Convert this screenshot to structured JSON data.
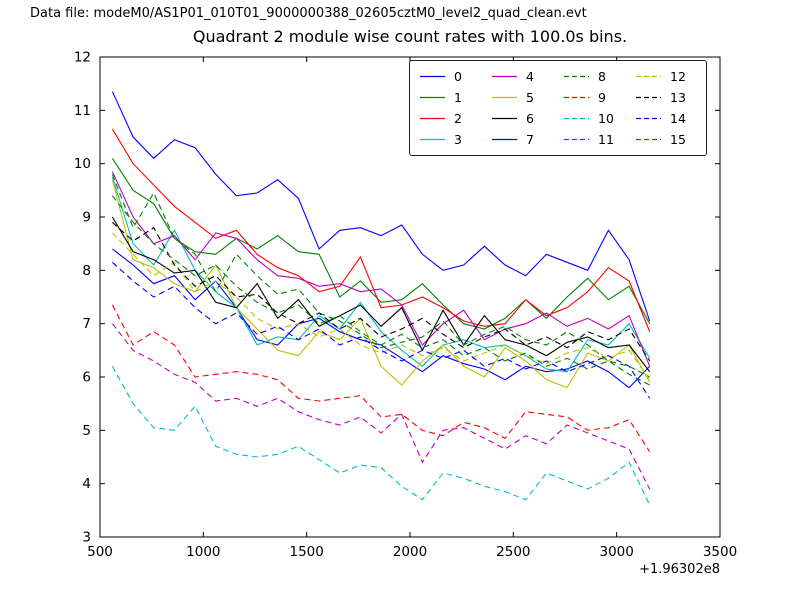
{
  "header": {
    "data_file_label": "Data file: modeM0/AS1P01_010T01_9000000388_02605cztM0_level2_quad_clean.evt"
  },
  "chart_data": {
    "type": "line",
    "title": "Quadrant 2 module wise count rates with 100.0s bins.",
    "xlabel": "",
    "ylabel": "",
    "x_offset_label": "+1.96302e8",
    "xlim": [
      500,
      3500
    ],
    "ylim": [
      3,
      12
    ],
    "xticks": [
      500,
      1000,
      1500,
      2000,
      2500,
      3000,
      3500
    ],
    "yticks": [
      3,
      4,
      5,
      6,
      7,
      8,
      9,
      10,
      11,
      12
    ],
    "grid": false,
    "legend_position": "upper right",
    "x": [
      560,
      660,
      760,
      860,
      960,
      1060,
      1160,
      1260,
      1360,
      1460,
      1560,
      1660,
      1760,
      1860,
      1960,
      2060,
      2160,
      2260,
      2360,
      2460,
      2560,
      2660,
      2760,
      2860,
      2960,
      3060,
      3160
    ],
    "series": [
      {
        "name": "0",
        "color": "#0000ff",
        "dash": false,
        "values": [
          8.4,
          8.1,
          7.75,
          7.9,
          7.45,
          7.8,
          7.3,
          6.7,
          6.6,
          7.0,
          7.1,
          6.85,
          6.7,
          6.6,
          6.35,
          6.1,
          6.4,
          6.25,
          6.15,
          5.95,
          6.2,
          6.1,
          6.15,
          6.3,
          6.1,
          5.8,
          6.2
        ]
      },
      {
        "name": "1",
        "color": "#008000",
        "dash": false,
        "values": [
          10.1,
          9.5,
          9.25,
          8.6,
          8.35,
          8.3,
          8.6,
          8.4,
          8.65,
          8.35,
          8.3,
          7.5,
          7.8,
          7.4,
          7.45,
          7.75,
          7.35,
          7.0,
          6.9,
          7.1,
          7.45,
          7.1,
          7.5,
          7.85,
          7.45,
          7.7,
          7.0
        ]
      },
      {
        "name": "2",
        "color": "#ff0000",
        "dash": false,
        "values": [
          10.65,
          10.0,
          9.6,
          9.2,
          8.9,
          8.6,
          8.75,
          8.3,
          8.05,
          7.9,
          7.6,
          7.7,
          8.25,
          7.3,
          7.35,
          7.5,
          7.3,
          7.05,
          6.95,
          7.0,
          7.45,
          7.15,
          7.3,
          7.6,
          8.05,
          7.8,
          6.85
        ]
      },
      {
        "name": "3",
        "color": "#00bfbf",
        "dash": false,
        "values": [
          9.75,
          8.5,
          8.1,
          8.75,
          8.0,
          7.6,
          7.3,
          6.6,
          6.75,
          6.7,
          7.15,
          6.9,
          7.4,
          6.85,
          6.5,
          6.2,
          6.6,
          6.7,
          6.55,
          6.6,
          6.4,
          6.15,
          6.1,
          6.7,
          6.6,
          7.0,
          6.35
        ]
      },
      {
        "name": "4",
        "color": "#bf00bf",
        "dash": false,
        "values": [
          9.85,
          9.0,
          8.5,
          8.65,
          8.2,
          8.7,
          8.6,
          8.2,
          7.9,
          7.85,
          7.7,
          7.75,
          7.6,
          7.65,
          7.35,
          6.6,
          7.0,
          7.25,
          6.7,
          6.9,
          7.0,
          7.2,
          6.95,
          7.1,
          6.9,
          7.15,
          6.2
        ]
      },
      {
        "name": "5",
        "color": "#bfbf00",
        "dash": false,
        "values": [
          9.7,
          8.2,
          8.05,
          7.75,
          7.6,
          8.1,
          7.3,
          6.9,
          6.5,
          6.4,
          6.85,
          6.7,
          7.1,
          6.2,
          5.85,
          6.3,
          6.6,
          6.2,
          6.0,
          6.55,
          6.3,
          5.95,
          5.8,
          6.45,
          6.3,
          6.6,
          5.9
        ]
      },
      {
        "name": "6",
        "color": "#000000",
        "dash": false,
        "values": [
          9.0,
          8.35,
          8.2,
          7.95,
          8.0,
          7.4,
          7.3,
          7.75,
          7.1,
          7.45,
          6.95,
          7.15,
          7.35,
          6.95,
          7.3,
          6.5,
          7.25,
          6.6,
          7.15,
          6.7,
          6.6,
          6.4,
          6.65,
          6.75,
          6.55,
          6.6,
          6.1
        ]
      },
      {
        "name": "7",
        "color": "#0000ff",
        "dash": false,
        "values": [
          11.35,
          10.5,
          10.1,
          10.45,
          10.3,
          9.8,
          9.4,
          9.45,
          9.7,
          9.35,
          8.4,
          8.75,
          8.8,
          8.65,
          8.85,
          8.3,
          8.0,
          8.1,
          8.45,
          8.1,
          7.9,
          8.3,
          8.15,
          8.0,
          8.75,
          8.2,
          7.05
        ]
      },
      {
        "name": "8",
        "color": "#008000",
        "dash": true,
        "values": [
          9.8,
          8.8,
          9.45,
          8.6,
          8.3,
          7.6,
          8.3,
          7.9,
          7.55,
          7.65,
          7.2,
          7.05,
          6.8,
          6.55,
          6.65,
          6.75,
          7.05,
          6.6,
          6.8,
          6.95,
          6.7,
          6.6,
          6.85,
          6.6,
          6.3,
          6.2,
          6.0
        ]
      },
      {
        "name": "9",
        "color": "#ff0000",
        "dash": true,
        "values": [
          7.35,
          6.6,
          6.85,
          6.6,
          6.0,
          6.05,
          6.1,
          6.05,
          5.95,
          5.6,
          5.55,
          5.6,
          5.65,
          5.25,
          5.3,
          5.0,
          4.9,
          5.15,
          5.05,
          4.85,
          5.35,
          5.3,
          5.25,
          5.0,
          5.05,
          5.2,
          4.6
        ]
      },
      {
        "name": "10",
        "color": "#00bfbf",
        "dash": true,
        "values": [
          6.2,
          5.5,
          5.05,
          5.0,
          5.45,
          4.7,
          4.55,
          4.5,
          4.55,
          4.7,
          4.45,
          4.2,
          4.35,
          4.3,
          3.95,
          3.7,
          4.2,
          4.1,
          3.95,
          3.85,
          3.7,
          4.2,
          4.05,
          3.9,
          4.1,
          4.4,
          3.6
        ]
      },
      {
        "name": "11",
        "color": "#bf00bf",
        "dash": true,
        "values": [
          7.0,
          6.5,
          6.3,
          6.05,
          5.9,
          5.55,
          5.6,
          5.45,
          5.6,
          5.35,
          5.2,
          5.1,
          5.25,
          4.95,
          5.3,
          4.4,
          5.0,
          5.05,
          4.85,
          4.65,
          4.9,
          4.75,
          5.1,
          4.95,
          4.8,
          4.65,
          3.9
        ]
      },
      {
        "name": "12",
        "color": "#bfbf00",
        "dash": true,
        "values": [
          8.7,
          8.3,
          7.9,
          8.15,
          7.6,
          7.8,
          7.5,
          7.1,
          6.9,
          7.0,
          6.75,
          6.9,
          6.6,
          6.45,
          6.6,
          6.4,
          6.55,
          6.3,
          6.45,
          6.6,
          6.4,
          6.25,
          6.45,
          6.55,
          6.35,
          6.5,
          5.95
        ]
      },
      {
        "name": "13",
        "color": "#000000",
        "dash": true,
        "values": [
          8.9,
          8.55,
          8.8,
          8.1,
          7.7,
          7.9,
          7.5,
          7.55,
          7.2,
          7.0,
          7.2,
          6.9,
          7.1,
          6.75,
          6.9,
          7.1,
          6.8,
          6.55,
          6.75,
          6.9,
          6.6,
          6.75,
          6.55,
          6.85,
          6.7,
          6.9,
          6.3
        ]
      },
      {
        "name": "14",
        "color": "#0000ff",
        "dash": true,
        "values": [
          8.15,
          7.8,
          7.5,
          7.7,
          7.3,
          7.0,
          7.2,
          6.8,
          6.95,
          6.7,
          6.9,
          6.6,
          6.75,
          6.5,
          6.3,
          6.5,
          6.35,
          6.5,
          6.2,
          6.35,
          6.15,
          6.3,
          6.1,
          6.25,
          6.4,
          6.2,
          5.6
        ]
      },
      {
        "name": "15",
        "color": "#008000",
        "dash": true,
        "values": [
          9.4,
          8.9,
          8.5,
          8.2,
          7.9,
          8.1,
          7.7,
          7.4,
          7.2,
          7.35,
          7.0,
          7.15,
          6.85,
          6.6,
          6.8,
          6.55,
          6.7,
          6.4,
          6.55,
          6.3,
          6.45,
          6.2,
          6.35,
          6.15,
          6.3,
          6.05,
          5.85
        ]
      }
    ]
  }
}
